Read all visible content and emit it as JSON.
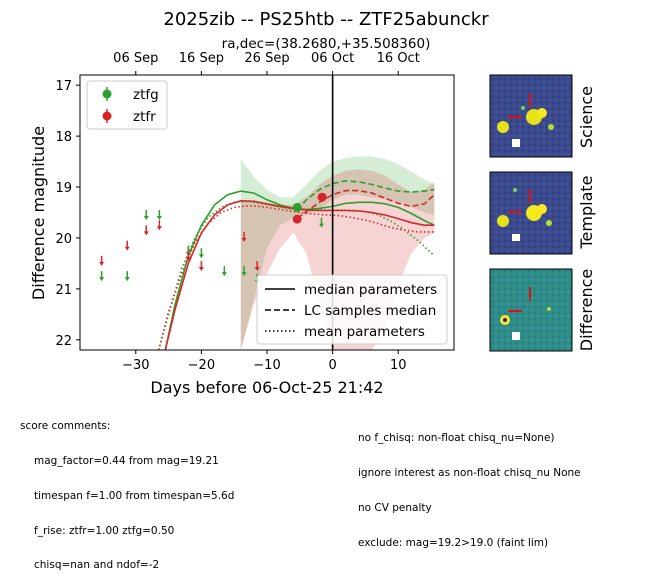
{
  "title": "2025zib -- PS25htb -- ZTF25abunckr",
  "subtitle": "ra,dec=(38.2680,+35.508360)",
  "colors": {
    "ztfg": "#2ca02c",
    "ztfr": "#d62728"
  },
  "chart_data": {
    "type": "scatter",
    "title": "2025zib -- PS25htb -- ZTF25abunckr",
    "subtitle": "ra,dec=(38.2680,+35.508360)",
    "xlabel": "Days before 06-Oct-25 21:42",
    "ylabel": "Difference magnitude",
    "xlim": [
      -38.5,
      18.5
    ],
    "ylim": [
      22.2,
      16.8
    ],
    "y_inverted": true,
    "x_ticks": [
      -30,
      -20,
      -10,
      0,
      10
    ],
    "y_ticks": [
      17,
      18,
      19,
      20,
      21,
      22
    ],
    "top_axis_ticks": [
      {
        "label": "06 Sep",
        "x": -30
      },
      {
        "label": "16 Sep",
        "x": -20
      },
      {
        "label": "26 Sep",
        "x": -10
      },
      {
        "label": "06 Oct",
        "x": 0
      },
      {
        "label": "16 Oct",
        "x": 10
      }
    ],
    "vertical_line_x": 0,
    "grid": false,
    "legend_placement": "top-left",
    "series": [
      {
        "name": "ztfg",
        "detections": [
          {
            "x": -5.4,
            "y": 19.4,
            "err": 0.08
          }
        ],
        "upper_limits": [
          {
            "x": -35.2,
            "y": 20.75
          },
          {
            "x": -31.3,
            "y": 20.75
          },
          {
            "x": -28.4,
            "y": 19.55
          },
          {
            "x": -26.4,
            "y": 19.55
          },
          {
            "x": -22.0,
            "y": 20.25
          },
          {
            "x": -20.0,
            "y": 20.3
          },
          {
            "x": -16.5,
            "y": 20.65
          },
          {
            "x": -13.5,
            "y": 20.65
          },
          {
            "x": -11.5,
            "y": 20.8
          },
          {
            "x": -1.7,
            "y": 19.7
          }
        ],
        "median_model": [
          {
            "x": -25.5,
            "y": 22.2
          },
          {
            "x": -24,
            "y": 21.3
          },
          {
            "x": -22,
            "y": 20.35
          },
          {
            "x": -20,
            "y": 19.75
          },
          {
            "x": -18,
            "y": 19.35
          },
          {
            "x": -16,
            "y": 19.15
          },
          {
            "x": -14,
            "y": 19.08
          },
          {
            "x": -12,
            "y": 19.12
          },
          {
            "x": -10,
            "y": 19.25
          },
          {
            "x": -8,
            "y": 19.35
          },
          {
            "x": -6,
            "y": 19.42
          },
          {
            "x": -4,
            "y": 19.44
          },
          {
            "x": -2,
            "y": 19.42
          },
          {
            "x": 0,
            "y": 19.38
          },
          {
            "x": 2,
            "y": 19.32
          },
          {
            "x": 4,
            "y": 19.3
          },
          {
            "x": 6,
            "y": 19.3
          },
          {
            "x": 8,
            "y": 19.33
          },
          {
            "x": 10,
            "y": 19.4
          },
          {
            "x": 12,
            "y": 19.52
          },
          {
            "x": 14,
            "y": 19.66
          },
          {
            "x": 15.5,
            "y": 19.75
          }
        ],
        "lc_samples_median": [
          {
            "x": -5.4,
            "y": 19.45
          },
          {
            "x": -4,
            "y": 19.25
          },
          {
            "x": -2,
            "y": 19.05
          },
          {
            "x": 0,
            "y": 18.93
          },
          {
            "x": 2,
            "y": 18.88
          },
          {
            "x": 4,
            "y": 18.9
          },
          {
            "x": 6,
            "y": 18.95
          },
          {
            "x": 8,
            "y": 19.02
          },
          {
            "x": 10,
            "y": 19.08
          },
          {
            "x": 12,
            "y": 19.1
          },
          {
            "x": 14,
            "y": 19.08
          },
          {
            "x": 15.5,
            "y": 19.05
          }
        ],
        "mean_model": [
          {
            "x": -26.5,
            "y": 22.2
          },
          {
            "x": -25,
            "y": 21.5
          },
          {
            "x": -23,
            "y": 20.6
          },
          {
            "x": -21,
            "y": 20.0
          },
          {
            "x": -19,
            "y": 19.6
          },
          {
            "x": -17,
            "y": 19.4
          },
          {
            "x": -15,
            "y": 19.3
          },
          {
            "x": -13,
            "y": 19.28
          },
          {
            "x": -11,
            "y": 19.32
          },
          {
            "x": -9,
            "y": 19.37
          },
          {
            "x": -7,
            "y": 19.42
          },
          {
            "x": -5,
            "y": 19.44
          },
          {
            "x": -3,
            "y": 19.45
          },
          {
            "x": -1,
            "y": 19.45
          },
          {
            "x": 1,
            "y": 19.45
          },
          {
            "x": 3,
            "y": 19.45
          },
          {
            "x": 5,
            "y": 19.48
          },
          {
            "x": 7,
            "y": 19.55
          },
          {
            "x": 9,
            "y": 19.68
          },
          {
            "x": 11,
            "y": 19.85
          },
          {
            "x": 13,
            "y": 20.05
          },
          {
            "x": 15.5,
            "y": 20.35
          }
        ],
        "band_upper": [
          {
            "x": -14,
            "y": 18.45
          },
          {
            "x": -12,
            "y": 18.8
          },
          {
            "x": -10,
            "y": 19.05
          },
          {
            "x": -8,
            "y": 19.2
          },
          {
            "x": -6,
            "y": 19.2
          },
          {
            "x": -4,
            "y": 18.95
          },
          {
            "x": -2,
            "y": 18.68
          },
          {
            "x": 0,
            "y": 18.5
          },
          {
            "x": 2,
            "y": 18.43
          },
          {
            "x": 4,
            "y": 18.4
          },
          {
            "x": 6,
            "y": 18.4
          },
          {
            "x": 8,
            "y": 18.45
          },
          {
            "x": 10,
            "y": 18.55
          },
          {
            "x": 12,
            "y": 18.7
          },
          {
            "x": 14,
            "y": 18.85
          },
          {
            "x": 15.5,
            "y": 18.95
          }
        ],
        "band_lower": [
          {
            "x": -14,
            "y": 22.2
          },
          {
            "x": -12,
            "y": 21.2
          },
          {
            "x": -10,
            "y": 20.2
          },
          {
            "x": -8,
            "y": 19.75
          },
          {
            "x": -6,
            "y": 19.6
          },
          {
            "x": -4,
            "y": 19.55
          },
          {
            "x": -2,
            "y": 19.45
          },
          {
            "x": 0,
            "y": 19.25
          },
          {
            "x": 2,
            "y": 19.15
          },
          {
            "x": 4,
            "y": 19.15
          },
          {
            "x": 6,
            "y": 19.2
          },
          {
            "x": 8,
            "y": 19.25
          },
          {
            "x": 10,
            "y": 19.3
          },
          {
            "x": 12,
            "y": 19.4
          },
          {
            "x": 14,
            "y": 19.5
          },
          {
            "x": 15.5,
            "y": 19.55
          }
        ]
      },
      {
        "name": "ztfr",
        "detections": [
          {
            "x": -5.4,
            "y": 19.63,
            "err": 0.08
          },
          {
            "x": -1.6,
            "y": 19.2,
            "err": 0.08
          }
        ],
        "upper_limits": [
          {
            "x": -35.2,
            "y": 20.45
          },
          {
            "x": -31.3,
            "y": 20.15
          },
          {
            "x": -28.4,
            "y": 19.85
          },
          {
            "x": -26.4,
            "y": 19.75
          },
          {
            "x": -22.0,
            "y": 20.35
          },
          {
            "x": -20.0,
            "y": 20.55
          },
          {
            "x": -13.5,
            "y": 19.98
          },
          {
            "x": -11.5,
            "y": 20.55
          }
        ],
        "median_model": [
          {
            "x": -25.5,
            "y": 22.2
          },
          {
            "x": -24,
            "y": 21.4
          },
          {
            "x": -22,
            "y": 20.5
          },
          {
            "x": -20,
            "y": 19.9
          },
          {
            "x": -18,
            "y": 19.55
          },
          {
            "x": -16,
            "y": 19.35
          },
          {
            "x": -14,
            "y": 19.27
          },
          {
            "x": -12,
            "y": 19.28
          },
          {
            "x": -10,
            "y": 19.33
          },
          {
            "x": -8,
            "y": 19.38
          },
          {
            "x": -6,
            "y": 19.42
          },
          {
            "x": -4,
            "y": 19.45
          },
          {
            "x": -2,
            "y": 19.46
          },
          {
            "x": 0,
            "y": 19.46
          },
          {
            "x": 2,
            "y": 19.46
          },
          {
            "x": 4,
            "y": 19.47
          },
          {
            "x": 6,
            "y": 19.5
          },
          {
            "x": 8,
            "y": 19.55
          },
          {
            "x": 10,
            "y": 19.62
          },
          {
            "x": 12,
            "y": 19.7
          },
          {
            "x": 14,
            "y": 19.75
          },
          {
            "x": 15.5,
            "y": 19.75
          }
        ],
        "lc_samples_median": [
          {
            "x": -5.4,
            "y": 19.62
          },
          {
            "x": -4,
            "y": 19.48
          },
          {
            "x": -2,
            "y": 19.3
          },
          {
            "x": 0,
            "y": 19.15
          },
          {
            "x": 2,
            "y": 19.07
          },
          {
            "x": 4,
            "y": 19.07
          },
          {
            "x": 6,
            "y": 19.12
          },
          {
            "x": 8,
            "y": 19.22
          },
          {
            "x": 10,
            "y": 19.32
          },
          {
            "x": 12,
            "y": 19.38
          },
          {
            "x": 14,
            "y": 19.33
          },
          {
            "x": 15.5,
            "y": 19.15
          }
        ],
        "mean_model": [
          {
            "x": -26.5,
            "y": 22.2
          },
          {
            "x": -25,
            "y": 21.45
          },
          {
            "x": -23,
            "y": 20.7
          },
          {
            "x": -21,
            "y": 20.1
          },
          {
            "x": -19,
            "y": 19.72
          },
          {
            "x": -17,
            "y": 19.5
          },
          {
            "x": -15,
            "y": 19.4
          },
          {
            "x": -13,
            "y": 19.37
          },
          {
            "x": -11,
            "y": 19.38
          },
          {
            "x": -9,
            "y": 19.42
          },
          {
            "x": -7,
            "y": 19.46
          },
          {
            "x": -5,
            "y": 19.5
          },
          {
            "x": -3,
            "y": 19.53
          },
          {
            "x": -1,
            "y": 19.55
          },
          {
            "x": 1,
            "y": 19.56
          },
          {
            "x": 3,
            "y": 19.6
          },
          {
            "x": 5,
            "y": 19.65
          },
          {
            "x": 7,
            "y": 19.72
          },
          {
            "x": 9,
            "y": 19.8
          },
          {
            "x": 11,
            "y": 19.85
          },
          {
            "x": 13,
            "y": 19.88
          },
          {
            "x": 15.5,
            "y": 19.88
          }
        ],
        "band_upper": [
          {
            "x": -14,
            "y": 19.25
          },
          {
            "x": -12,
            "y": 19.28
          },
          {
            "x": -10,
            "y": 19.32
          },
          {
            "x": -8,
            "y": 19.36
          },
          {
            "x": -6,
            "y": 19.35
          },
          {
            "x": -4,
            "y": 19.2
          },
          {
            "x": -2,
            "y": 18.95
          },
          {
            "x": 0,
            "y": 18.78
          },
          {
            "x": 2,
            "y": 18.68
          },
          {
            "x": 4,
            "y": 18.65
          },
          {
            "x": 6,
            "y": 18.68
          },
          {
            "x": 8,
            "y": 18.78
          },
          {
            "x": 10,
            "y": 18.95
          },
          {
            "x": 12,
            "y": 19.1
          },
          {
            "x": 14,
            "y": 19.05
          },
          {
            "x": 15.5,
            "y": 18.9
          }
        ],
        "band_lower": [
          {
            "x": -14,
            "y": 22.2
          },
          {
            "x": -12,
            "y": 21.3
          },
          {
            "x": -10,
            "y": 20.7
          },
          {
            "x": -8,
            "y": 20.2
          },
          {
            "x": -6,
            "y": 19.9
          },
          {
            "x": -4,
            "y": 20.3
          },
          {
            "x": -2,
            "y": 21.3
          },
          {
            "x": 0,
            "y": 22.2
          },
          {
            "x": 6,
            "y": 22.2
          },
          {
            "x": 8,
            "y": 21.8
          },
          {
            "x": 10,
            "y": 20.9
          },
          {
            "x": 12,
            "y": 20.3
          },
          {
            "x": 14,
            "y": 20.0
          },
          {
            "x": 15.5,
            "y": 19.9
          }
        ]
      }
    ],
    "legend_series": [
      "ztfg",
      "ztfr"
    ],
    "legend_styles": [
      {
        "label": "median parameters",
        "style": "solid"
      },
      {
        "label": "LC samples median",
        "style": "dashed"
      },
      {
        "label": "mean parameters",
        "style": "dotted"
      }
    ]
  },
  "thumbnails": [
    {
      "label": "Science"
    },
    {
      "label": "Template"
    },
    {
      "label": "Difference"
    }
  ],
  "score_comments": {
    "header": "score comments:",
    "left": [
      "mag_factor=0.44 from mag=19.21",
      "timespan f=1.00 from timespan=5.6d",
      "f_rise: ztfr=1.00 ztfg=0.50",
      "chisq=nan and ndof=-2"
    ],
    "right": [
      "no f_chisq: non-float chisq_nu=None)",
      "ignore interest as non-float chisq_nu None",
      "no CV penalty",
      "exclude: mag=19.2>19.0 (faint lim)"
    ]
  }
}
